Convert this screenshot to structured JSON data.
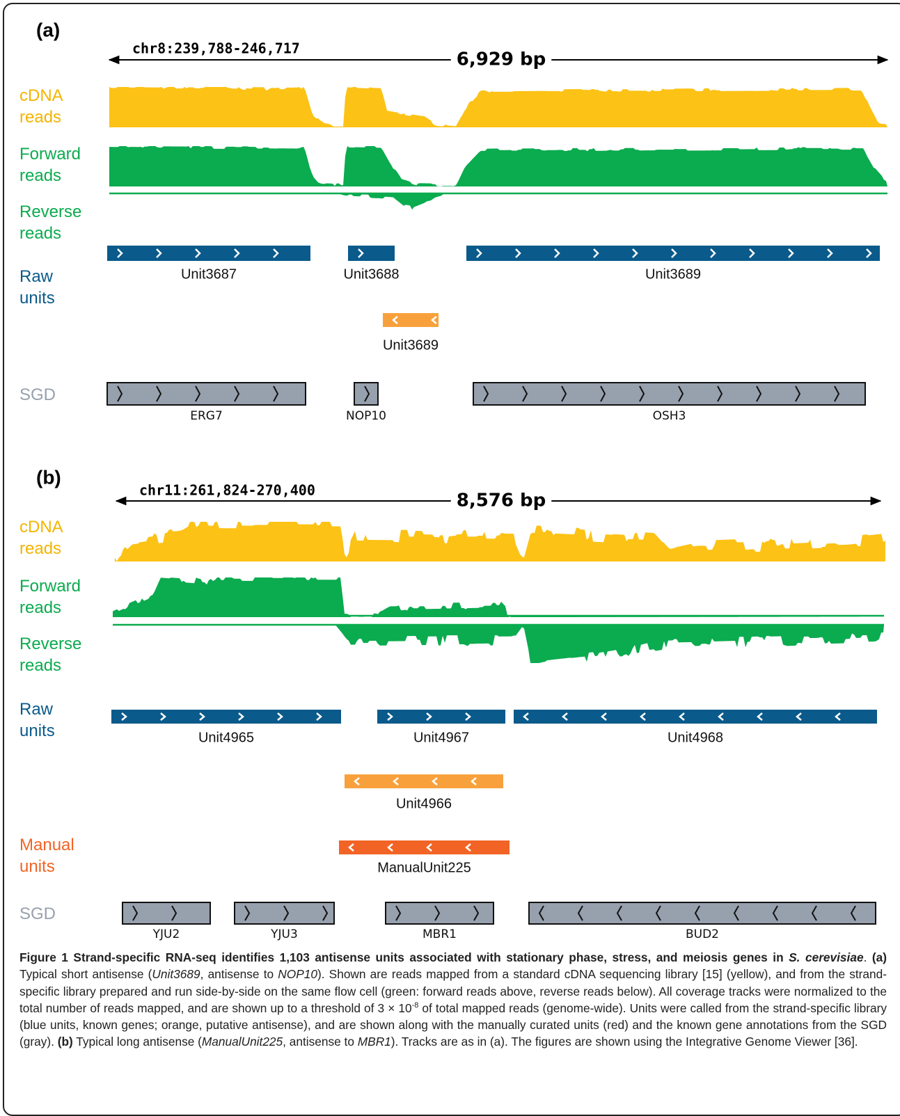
{
  "panels": [
    {
      "label": "(a)",
      "locus": "chr8:239,788-246,717",
      "span": "6,929 bp",
      "track_labels": [
        "cDNA reads",
        "Forward reads",
        "Reverse reads",
        "Raw units",
        "SGD"
      ],
      "raw_units": [
        "Unit3687",
        "Unit3688",
        "Unit3689"
      ],
      "antisense_units": [
        "Unit3689"
      ],
      "sgd_genes": [
        "ERG7",
        "NOP10",
        "OSH3"
      ]
    },
    {
      "label": "(b)",
      "locus": "chr11:261,824-270,400",
      "span": "8,576 bp",
      "track_labels": [
        "cDNA reads",
        "Forward reads",
        "Reverse reads",
        "Raw units",
        "Manual units",
        "SGD"
      ],
      "raw_units": [
        "Unit4965",
        "Unit4967",
        "Unit4968"
      ],
      "antisense_units": [
        "Unit4966"
      ],
      "manual_units": [
        "ManualUnit225"
      ],
      "sgd_genes": [
        "YJU2",
        "YJU3",
        "MBR1",
        "BUD2"
      ]
    }
  ],
  "caption": [
    {
      "text": "Figure 1 Strand-specific RNA-seq identifies 1,103 antisense units associated with stationary phase, stress, and meiosis genes in ",
      "style": "bold"
    },
    {
      "text": "S. cerevisiae",
      "style": "bold-italic"
    },
    {
      "text": ". ",
      "style": "normal"
    },
    {
      "text": "(a)",
      "style": "bold"
    },
    {
      "text": " Typical short antisense (",
      "style": "normal"
    },
    {
      "text": "Unit3689",
      "style": "italic"
    },
    {
      "text": ", antisense to ",
      "style": "normal"
    },
    {
      "text": "NOP10",
      "style": "italic"
    },
    {
      "text": "). Shown are reads mapped from a standard cDNA sequencing library [15] (yellow), and from the strand-specific library prepared and run side-by-side on the same flow cell (green: forward reads above, reverse reads below). All coverage tracks were normalized to the total number of reads mapped, and are shown up to a threshold of 3 × 10",
      "style": "normal"
    },
    {
      "text": "-8",
      "style": "sup"
    },
    {
      "text": " of total mapped reads (genome-wide). Units were called from the strand-specific library (blue units, known genes; orange, putative antisense), and are shown along with the manually curated units (red) and the known gene annotations from the SGD (gray). ",
      "style": "normal"
    },
    {
      "text": "(b)",
      "style": "bold"
    },
    {
      "text": " Typical long antisense (",
      "style": "normal"
    },
    {
      "text": "ManualUnit225",
      "style": "italic"
    },
    {
      "text": ", antisense to ",
      "style": "normal"
    },
    {
      "text": "MBR1",
      "style": "italic"
    },
    {
      "text": "). Tracks are as in (a). The figures are shown using the Integrative Genome Viewer [36].",
      "style": "normal"
    }
  ]
}
